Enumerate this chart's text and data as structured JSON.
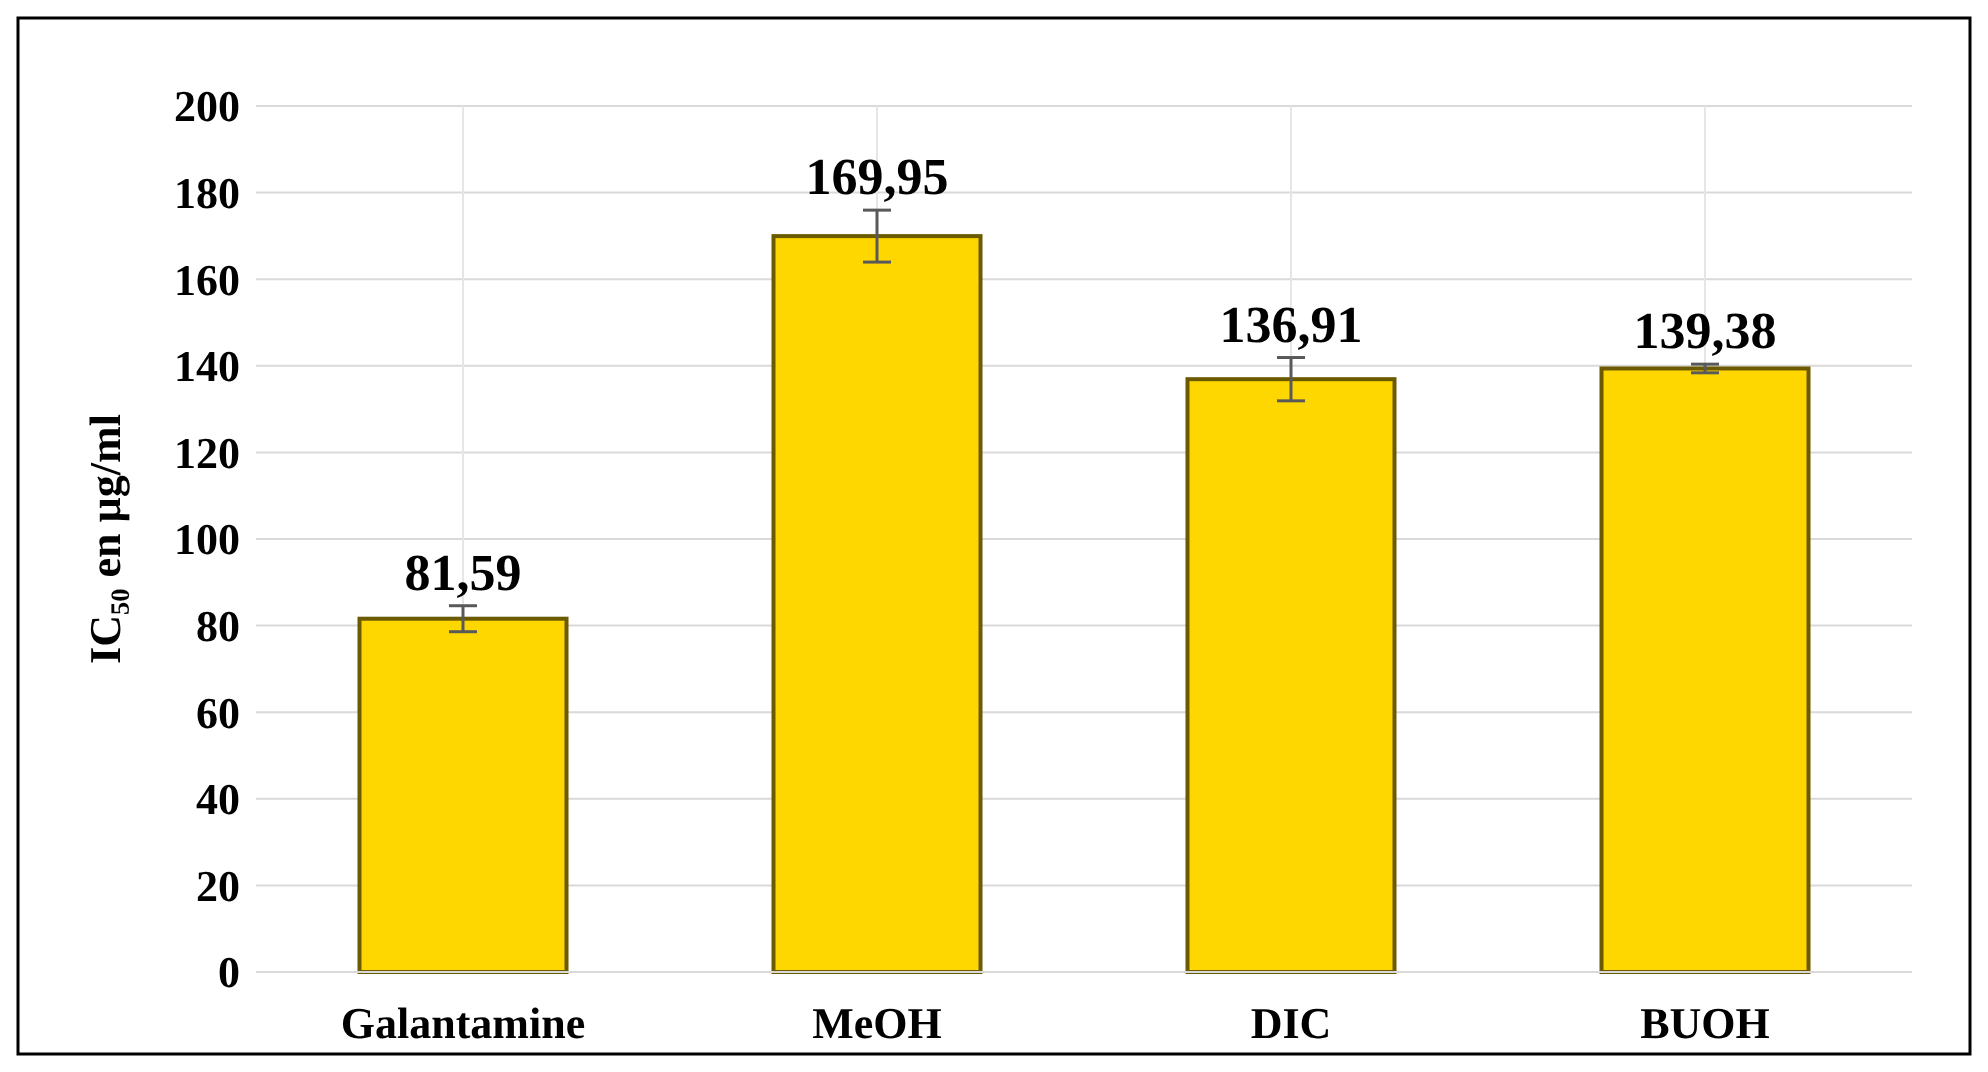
{
  "chart_data": {
    "type": "bar",
    "ylabel": "IC₅₀ en µg/ml",
    "categories": [
      "Galantamine",
      "MeOH",
      "DIC",
      "BUOH"
    ],
    "values": [
      81.59,
      169.95,
      136.91,
      139.38
    ],
    "value_labels": [
      "81,59",
      "169,95",
      "136,91",
      "139,38"
    ],
    "errors": [
      3,
      6,
      5,
      1
    ],
    "color": "#ffd700",
    "ylim": [
      0,
      200
    ],
    "yticks": [
      0,
      20,
      40,
      60,
      80,
      100,
      120,
      140,
      160,
      180,
      200
    ],
    "grid": true
  }
}
